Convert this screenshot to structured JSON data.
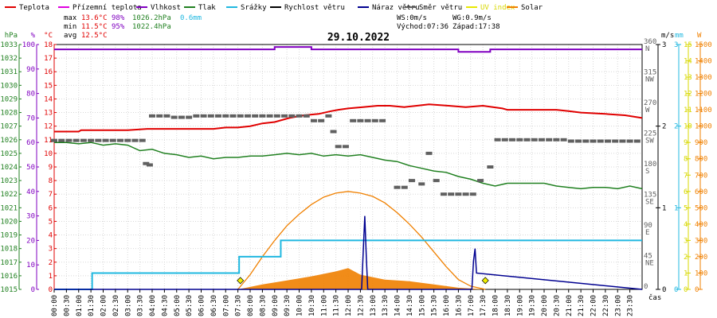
{
  "chart_data": {
    "type": "line",
    "title": "29.10.2022",
    "legend": {
      "placement": "top",
      "items": [
        {
          "label": "Teplota",
          "color": "#e00000"
        },
        {
          "label": "Přízemní teplota",
          "color": "#e000e0"
        },
        {
          "label": "Vlhkost",
          "color": "#8000c0"
        },
        {
          "label": "Tlak",
          "color": "#208020"
        },
        {
          "label": "Srážky",
          "color": "#20b8e0"
        },
        {
          "label": "Rychlost větru",
          "color": "#000000"
        },
        {
          "label": "Náraz větru",
          "color": "#000090"
        },
        {
          "label": "Směr větru",
          "color": "#606060"
        },
        {
          "label": "UV index",
          "color": "#e8e800"
        },
        {
          "label": "Solar",
          "color": "#f08000"
        }
      ]
    },
    "stats": {
      "max": {
        "label": "max",
        "temp": "13.6°C",
        "hum": "98%",
        "press": "1026.2hPa",
        "rain": "0.6mm"
      },
      "min": {
        "label": "min",
        "temp": "11.5°C",
        "hum": "95%",
        "press": "1022.4hPa"
      },
      "avg": {
        "label": "avg",
        "temp": "12.5°C"
      },
      "ws": "WS:0m/s",
      "wg": "WG:0.9m/s",
      "sunrise": "Východ:07:36",
      "sunset": "Západ:17:38"
    },
    "axes": {
      "left": [
        {
          "unit": "hPa",
          "color": "#208020",
          "range": [
            1015,
            1033
          ],
          "ticks": [
            "1015",
            "1016",
            "1017",
            "1018",
            "1019",
            "1020",
            "1021",
            "1022",
            "1023",
            "1024",
            "1025",
            "1026",
            "1027",
            "1028",
            "1029",
            "1030",
            "1031",
            "1032",
            "1033"
          ]
        },
        {
          "unit": "%",
          "color": "#8000c0",
          "range": [
            0,
            100
          ],
          "ticks": [
            "0",
            "10",
            "20",
            "30",
            "40",
            "50",
            "60",
            "70",
            "80",
            "90",
            "100"
          ]
        },
        {
          "unit": "°C",
          "color": "#e00000",
          "range": [
            0,
            18
          ],
          "ticks": [
            "0",
            "1",
            "2",
            "3",
            "4",
            "5",
            "6",
            "7",
            "8",
            "9",
            "10",
            "11",
            "12",
            "13",
            "14",
            "15",
            "16",
            "17",
            "18"
          ]
        }
      ],
      "right": [
        {
          "unit": "m/s",
          "color": "#000000",
          "range": [
            0,
            3
          ],
          "ticks": [
            "0",
            "1",
            "2",
            "3"
          ]
        },
        {
          "unit": "°",
          "color": "#606060",
          "ticks": [
            {
              "deg": "0",
              "dir": ""
            },
            {
              "deg": "45",
              "dir": "NE"
            },
            {
              "deg": "90",
              "dir": "E"
            },
            {
              "deg": "135",
              "dir": "SE"
            },
            {
              "deg": "180",
              "dir": "S"
            },
            {
              "deg": "225",
              "dir": "SW"
            },
            {
              "deg": "270",
              "dir": "W"
            },
            {
              "deg": "315",
              "dir": "NW"
            },
            {
              "deg": "360",
              "dir": "N"
            }
          ]
        },
        {
          "unit": "mm",
          "color": "#20b8e0",
          "range": [
            0,
            3
          ],
          "ticks": [
            "0",
            "1",
            "2",
            "3"
          ]
        },
        {
          "unit": "",
          "color": "#d8d800",
          "range": [
            0,
            15
          ],
          "ticks": [
            "0",
            "1",
            "2",
            "3",
            "4",
            "5",
            "6",
            "7",
            "8",
            "9",
            "10",
            "11",
            "12",
            "13",
            "14",
            "15"
          ]
        },
        {
          "unit": "W",
          "color": "#f08000",
          "range": [
            0,
            1500
          ],
          "ticks": [
            "0",
            "100",
            "200",
            "300",
            "400",
            "500",
            "600",
            "700",
            "800",
            "900",
            "1000",
            "1100",
            "1200",
            "1300",
            "1400",
            "1500"
          ]
        }
      ]
    },
    "x": {
      "label": "čas",
      "unit": "hours",
      "range": [
        0,
        24
      ],
      "ticks": [
        "00:00",
        "00:30",
        "01:00",
        "01:30",
        "02:00",
        "02:30",
        "03:00",
        "03:30",
        "04:00",
        "04:30",
        "05:00",
        "05:30",
        "06:00",
        "06:30",
        "07:00",
        "07:30",
        "08:00",
        "08:30",
        "09:00",
        "09:30",
        "10:00",
        "10:30",
        "11:00",
        "11:30",
        "12:00",
        "12:30",
        "13:00",
        "13:30",
        "14:00",
        "14:30",
        "15:00",
        "15:30",
        "16:00",
        "16:30",
        "17:00",
        "17:30",
        "18:00",
        "18:30",
        "19:00",
        "19:30",
        "20:00",
        "20:30",
        "21:00",
        "21:30",
        "22:00",
        "22:30",
        "23:00",
        "23:30"
      ]
    },
    "grid": true,
    "series": [
      {
        "name": "Teplota",
        "unit": "°C",
        "color": "#e00000",
        "x": [
          0,
          1,
          1.1,
          3,
          3.8,
          6.5,
          7,
          7.5,
          8,
          8.5,
          9,
          9.6,
          10.2,
          10.8,
          11.3,
          11.6,
          12,
          12.6,
          13.2,
          13.7,
          14.3,
          14.8,
          15.3,
          16.1,
          16.8,
          17.5,
          18.3,
          18.5,
          19.5,
          20.5,
          21,
          21.5,
          22.5,
          23.3,
          24
        ],
        "values": [
          11.6,
          11.6,
          11.7,
          11.7,
          11.8,
          11.8,
          11.9,
          11.9,
          12.0,
          12.2,
          12.3,
          12.6,
          12.8,
          12.9,
          13.1,
          13.2,
          13.3,
          13.4,
          13.5,
          13.5,
          13.4,
          13.5,
          13.6,
          13.5,
          13.4,
          13.5,
          13.3,
          13.2,
          13.2,
          13.2,
          13.1,
          13.0,
          12.9,
          12.8,
          12.6
        ]
      },
      {
        "name": "Vlhkost",
        "unit": "%",
        "color": "#8000c0",
        "x": [
          0,
          8.8,
          9.0,
          10.3,
          10.5,
          16.2,
          16.5,
          17.6,
          17.8,
          24
        ],
        "values": [
          98,
          98,
          99,
          99,
          98,
          98,
          97,
          97,
          98,
          98
        ]
      },
      {
        "name": "Tlak",
        "unit": "hPa",
        "color": "#208020",
        "x": [
          0,
          0.5,
          1,
          1.5,
          2,
          2.5,
          3,
          3.5,
          4,
          4.5,
          5,
          5.5,
          6,
          6.5,
          7,
          7.5,
          8,
          8.5,
          9,
          9.5,
          10,
          10.5,
          11,
          11.5,
          12,
          12.5,
          13,
          13.5,
          14,
          14.5,
          15,
          15.5,
          16,
          16.5,
          17,
          17.5,
          18,
          18.5,
          19,
          19.5,
          20,
          20.5,
          21,
          21.5,
          22,
          22.5,
          23,
          23.5,
          24
        ],
        "values": [
          1025.8,
          1025.8,
          1025.7,
          1025.8,
          1025.6,
          1025.7,
          1025.6,
          1025.2,
          1025.3,
          1025.0,
          1024.9,
          1024.7,
          1024.8,
          1024.6,
          1024.7,
          1024.7,
          1024.8,
          1024.8,
          1024.9,
          1025.0,
          1024.9,
          1025.0,
          1024.8,
          1024.9,
          1024.8,
          1024.9,
          1024.7,
          1024.5,
          1024.4,
          1024.1,
          1023.9,
          1023.7,
          1023.6,
          1023.3,
          1023.1,
          1022.8,
          1022.6,
          1022.8,
          1022.8,
          1022.8,
          1022.8,
          1022.6,
          1022.5,
          1022.4,
          1022.5,
          1022.5,
          1022.4,
          1022.6,
          1022.4
        ]
      },
      {
        "name": "Srážky",
        "unit": "mm",
        "color": "#20b8e0",
        "x": [
          0,
          1.5,
          1.55,
          7.5,
          7.55,
          9.2,
          9.25,
          24
        ],
        "values": [
          0,
          0,
          0.2,
          0.2,
          0.4,
          0.4,
          0.6,
          0.6
        ]
      },
      {
        "name": "Náraz větru",
        "unit": "m/s",
        "color": "#000090",
        "x": [
          0,
          12.55,
          12.62,
          12.68,
          12.74,
          12.8,
          17.05,
          17.12,
          17.18,
          17.24,
          24
        ],
        "values": [
          0,
          0,
          0.5,
          0.9,
          0.4,
          0,
          0,
          0.35,
          0.5,
          0.2,
          0
        ]
      },
      {
        "name": "Směr větru",
        "unit": "°",
        "color": "#606060",
        "x": [
          0,
          0.3,
          0.6,
          0.9,
          1.2,
          1.5,
          1.8,
          2.1,
          2.4,
          2.7,
          3.0,
          3.3,
          3.6,
          3.75,
          3.9,
          4.0,
          4.3,
          4.6,
          4.9,
          5.2,
          5.5,
          5.8,
          6.1,
          6.4,
          6.7,
          7.0,
          7.3,
          7.6,
          7.9,
          8.2,
          8.5,
          8.8,
          9.1,
          9.4,
          9.7,
          10.0,
          10.3,
          10.6,
          10.9,
          11.2,
          11.4,
          11.6,
          11.9,
          12.2,
          12.5,
          12.8,
          13.1,
          13.4,
          14.0,
          14.3,
          14.6,
          15.0,
          15.3,
          15.6,
          15.9,
          16.2,
          16.5,
          16.8,
          17.1,
          17.4,
          17.8,
          18.1,
          18.4,
          18.7,
          19.0,
          19.3,
          19.6,
          19.9,
          20.2,
          20.5,
          20.8,
          21.1,
          21.4,
          21.7,
          22.0,
          22.3,
          22.6,
          22.9,
          23.2,
          23.5,
          23.8
        ],
        "values": [
          219,
          219,
          219,
          219,
          219,
          219,
          219,
          219,
          219,
          219,
          219,
          219,
          219,
          185,
          183,
          255,
          255,
          255,
          253,
          253,
          253,
          255,
          255,
          255,
          255,
          255,
          255,
          255,
          255,
          255,
          255,
          255,
          255,
          255,
          255,
          255,
          255,
          248,
          248,
          255,
          232,
          210,
          210,
          248,
          248,
          248,
          248,
          248,
          150,
          150,
          160,
          155,
          200,
          160,
          140,
          140,
          140,
          140,
          140,
          160,
          180,
          220,
          220,
          220,
          220,
          220,
          220,
          220,
          220,
          220,
          220,
          218,
          218,
          218,
          218,
          218,
          218,
          218,
          218,
          218,
          218
        ]
      },
      {
        "name": "Solar",
        "unit": "W",
        "color": "#f08000",
        "x": [
          7.5,
          8.5,
          9.5,
          10.5,
          11.5,
          12.0,
          12.5,
          13.5,
          14.5,
          15.5,
          16.5,
          17.6
        ],
        "values": [
          0,
          30,
          55,
          80,
          110,
          130,
          90,
          60,
          50,
          30,
          10,
          0
        ]
      },
      {
        "name": "Solar max",
        "unit": "W",
        "color": "#f08000",
        "x": [
          7.5,
          8,
          8.5,
          9,
          9.5,
          10,
          10.5,
          11,
          11.5,
          12,
          12.5,
          13,
          13.5,
          14,
          14.5,
          15,
          15.5,
          16,
          16.5,
          17,
          17.6
        ],
        "values": [
          0,
          90,
          200,
          300,
          390,
          460,
          520,
          565,
          590,
          600,
          590,
          570,
          530,
          470,
          400,
          320,
          230,
          140,
          60,
          20,
          0
        ]
      }
    ],
    "markers": [
      {
        "name": "UV index",
        "unit": "",
        "color": "#f0f000",
        "x": [
          7.6,
          17.6
        ],
        "values": [
          0.3,
          0.3
        ]
      }
    ]
  }
}
